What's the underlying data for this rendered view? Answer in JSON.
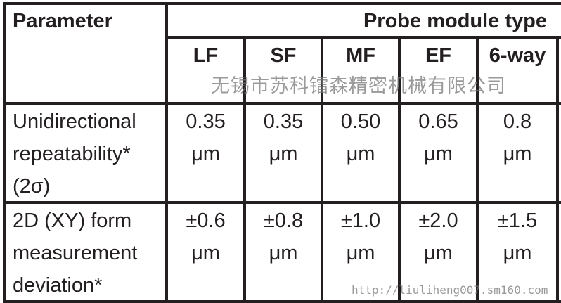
{
  "table": {
    "header": {
      "parameter": "Parameter",
      "group": "Probe module type"
    },
    "columns": [
      "LF",
      "SF",
      "MF",
      "EF",
      "6-way"
    ],
    "rows": [
      {
        "label": [
          "Unidirectional",
          "repeatability*",
          "(2σ)"
        ],
        "values": [
          [
            "0.35",
            "μm"
          ],
          [
            "0.35",
            "μm"
          ],
          [
            "0.50",
            "μm"
          ],
          [
            "0.65",
            "μm"
          ],
          [
            "0.8",
            "μm"
          ]
        ]
      },
      {
        "label": [
          "2D (XY) form",
          "measurement",
          "deviation*"
        ],
        "values": [
          [
            "±0.6",
            "μm"
          ],
          [
            "±0.8",
            "μm"
          ],
          [
            "±1.0",
            "μm"
          ],
          [
            "±2.0",
            "μm"
          ],
          [
            "±1.5",
            "μm"
          ]
        ]
      }
    ]
  },
  "watermark": {
    "company": "无锡市苏科镭森精密机械有限公司",
    "url": "http://liuliheng007.sm160.com"
  }
}
